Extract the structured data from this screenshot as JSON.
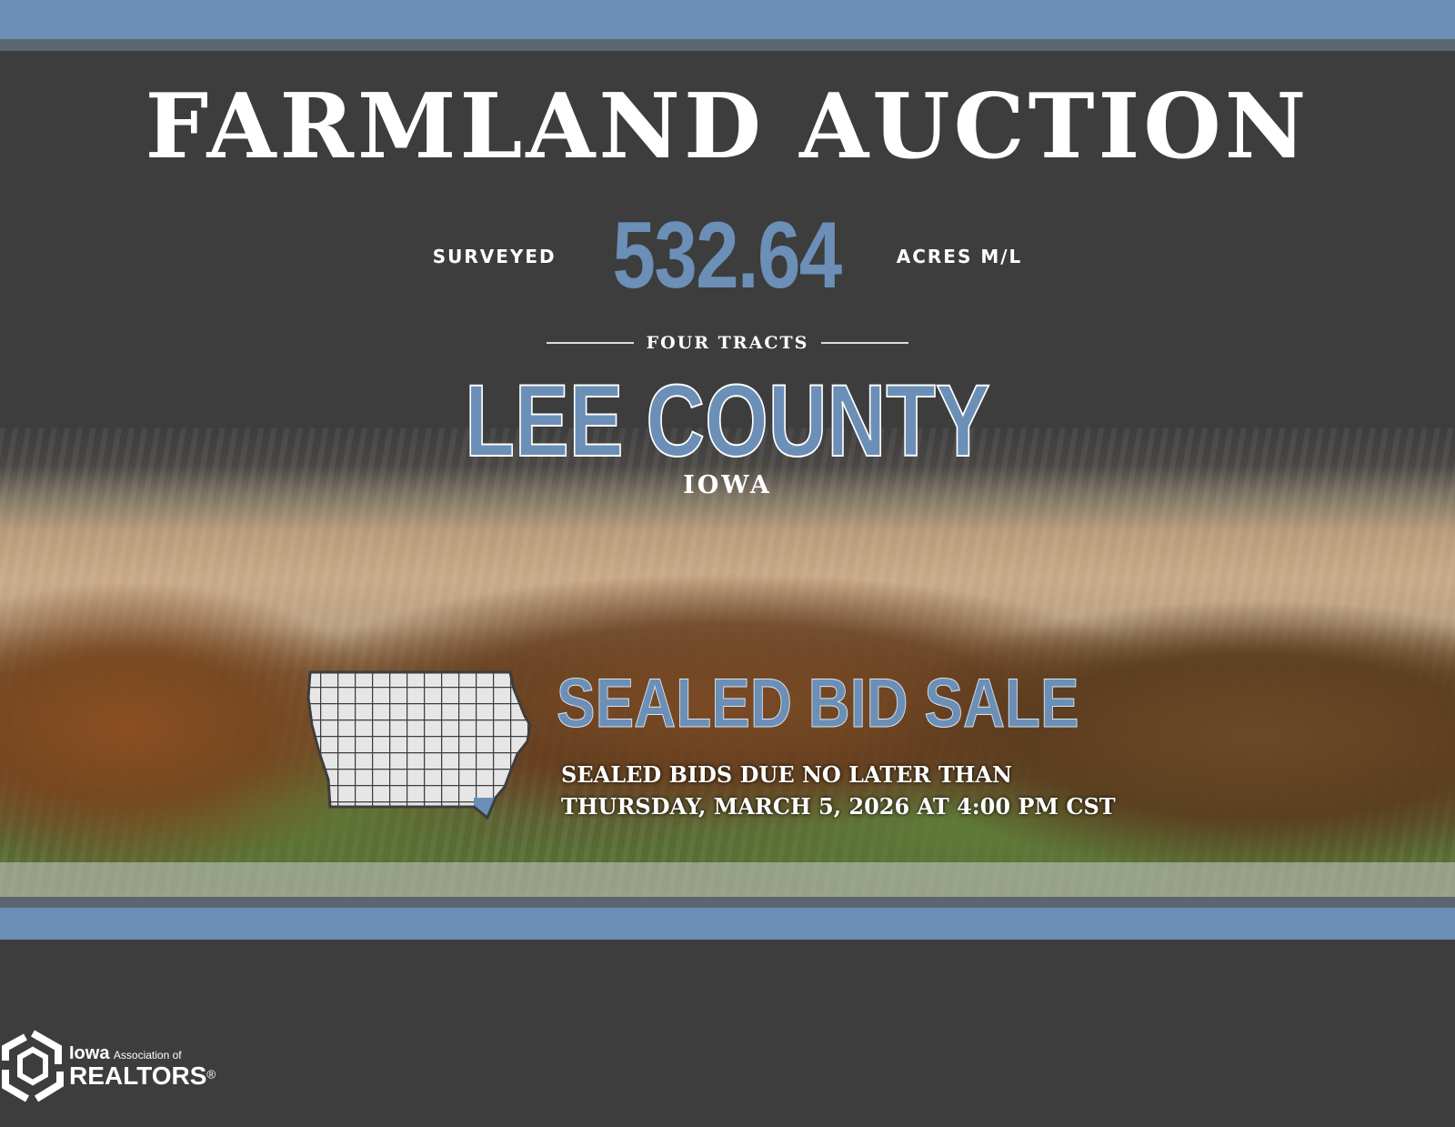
{
  "title": "FARMLAND AUCTION",
  "acres": {
    "prefix": "SURVEYED",
    "value": "532.64",
    "suffix": "ACRES M/L"
  },
  "tracts": "FOUR TRACTS",
  "county": "LEE COUNTY",
  "state": "IOWA",
  "sale": {
    "heading": "SEALED BID SALE",
    "line1": "SEALED BIDS DUE NO LATER THAN",
    "line2": "THURSDAY, MARCH 5, 2026 AT 4:00 PM CST"
  },
  "map": {
    "icon": "iowa-county-map",
    "highlight": "Lee County",
    "highlight_color": "#6b8fb6"
  },
  "logo": {
    "iowa": "Iowa",
    "assoc": "Association of",
    "realtors": "REALTORS",
    "reg": "®"
  },
  "colors": {
    "accent": "#6b8fb6",
    "background": "#3d3d3d"
  }
}
